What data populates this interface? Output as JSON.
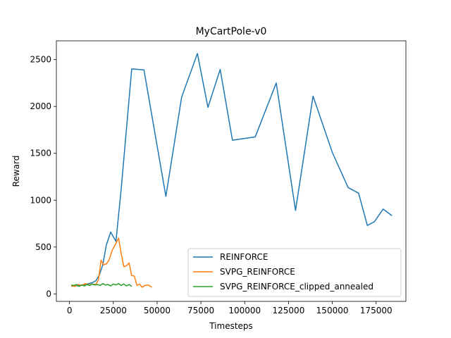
{
  "chart_data": {
    "type": "line",
    "title": "MyCartPole-v0",
    "xlabel": "Timesteps",
    "ylabel": "Reward",
    "xlim": [
      -7500,
      192000
    ],
    "ylim": [
      -80,
      2700
    ],
    "xticks": [
      0,
      25000,
      50000,
      75000,
      100000,
      125000,
      150000,
      175000
    ],
    "yticks": [
      0,
      500,
      1000,
      1500,
      2000,
      2500
    ],
    "grid": false,
    "legend": "lower-right",
    "series": [
      {
        "name": "REINFORCE",
        "color": "#1f77b4",
        "x": [
          1000,
          3000,
          5000,
          7000,
          9000,
          11000,
          13000,
          15000,
          17000,
          19000,
          21000,
          23500,
          26500,
          29500,
          35500,
          42500,
          55000,
          64000,
          73000,
          79000,
          86000,
          93000,
          106000,
          118000,
          129000,
          139000,
          150000,
          159000,
          165000,
          170000,
          174000,
          179000,
          184000
        ],
        "y": [
          80,
          90,
          85,
          95,
          100,
          110,
          120,
          140,
          200,
          310,
          520,
          660,
          560,
          1120,
          2400,
          2390,
          1040,
          2100,
          2565,
          1990,
          2395,
          1640,
          1675,
          2250,
          890,
          2110,
          1510,
          1135,
          1075,
          730,
          770,
          905,
          835
        ]
      },
      {
        "name": "SVPG_REINFORCE",
        "color": "#ff7f0e",
        "x": [
          1000,
          3000,
          5000,
          7000,
          9000,
          11000,
          13000,
          15000,
          16500,
          18000,
          19500,
          21000,
          22500,
          24500,
          26500,
          28000,
          29500,
          31000,
          32500,
          34000,
          35500,
          37000,
          38500,
          40000,
          41500,
          43000,
          45000,
          47000
        ],
        "y": [
          85,
          80,
          100,
          90,
          110,
          95,
          105,
          100,
          150,
          360,
          310,
          320,
          360,
          470,
          540,
          595,
          430,
          290,
          300,
          330,
          195,
          190,
          90,
          105,
          70,
          90,
          95,
          70
        ]
      },
      {
        "name": "SVPG_REINFORCE_clipped_annealed",
        "color": "#2ca02c",
        "x": [
          1000,
          2500,
          4000,
          5500,
          7000,
          8500,
          10000,
          11500,
          13000,
          14500,
          16000,
          17500,
          19000,
          20500,
          22000,
          23500,
          25000,
          26500,
          28000,
          29500,
          31000,
          32500,
          34000,
          35500
        ],
        "y": [
          95,
          90,
          100,
          80,
          95,
          85,
          100,
          90,
          105,
          95,
          100,
          90,
          110,
          95,
          100,
          85,
          105,
          95,
          110,
          90,
          105,
          85,
          100,
          80
        ]
      }
    ]
  }
}
